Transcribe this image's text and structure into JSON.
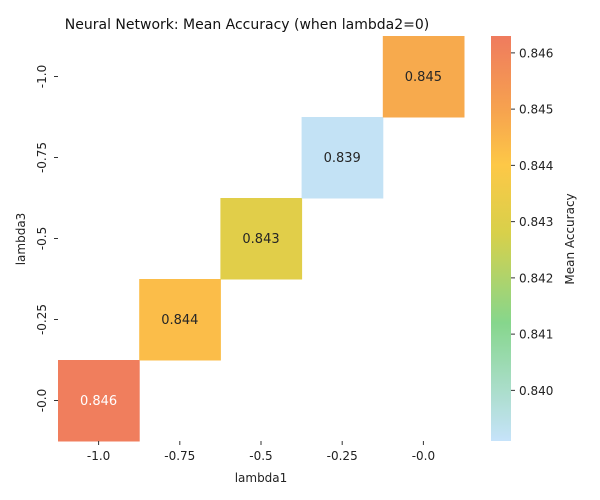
{
  "chart_data": {
    "type": "heatmap",
    "title": "Neural Network: Mean Accuracy (when lambda2=0)",
    "xlabel": "lambda1",
    "ylabel": "lambda3",
    "x_categories": [
      "-1.0",
      "-0.75",
      "-0.5",
      "-0.25",
      "-0.0"
    ],
    "y_categories": [
      "-1.0",
      "-0.75",
      "-0.5",
      "-0.25",
      "-0.0"
    ],
    "cells": [
      {
        "x": "-1.0",
        "y": "-0.0",
        "value": 0.8462,
        "label": "0.846",
        "label_color": "#ffffff"
      },
      {
        "x": "-0.75",
        "y": "-0.25",
        "value": 0.8443,
        "label": "0.844",
        "label_color": "#262626"
      },
      {
        "x": "-0.5",
        "y": "-0.5",
        "value": 0.8431,
        "label": "0.843",
        "label_color": "#262626"
      },
      {
        "x": "-0.25",
        "y": "-0.75",
        "value": 0.8392,
        "label": "0.839",
        "label_color": "#262626"
      },
      {
        "x": "-0.0",
        "y": "-1.0",
        "value": 0.8448,
        "label": "0.845",
        "label_color": "#262626"
      }
    ],
    "colorbar": {
      "label": "Mean Accuracy",
      "range": [
        0.8391,
        0.8463
      ],
      "ticks": [
        "0.840",
        "0.841",
        "0.842",
        "0.843",
        "0.844",
        "0.845",
        "0.846"
      ],
      "tick_values": [
        0.84,
        0.841,
        0.842,
        0.843,
        0.844,
        0.845,
        0.846
      ],
      "stops": [
        {
          "value": 0.8391,
          "color": "#c6e3fa"
        },
        {
          "value": 0.8412,
          "color": "#86d68c"
        },
        {
          "value": 0.8428,
          "color": "#d8d04a"
        },
        {
          "value": 0.844,
          "color": "#fdc847"
        },
        {
          "value": 0.845,
          "color": "#f6a24f"
        },
        {
          "value": 0.8463,
          "color": "#ef7b5e"
        }
      ]
    },
    "grid": false
  }
}
